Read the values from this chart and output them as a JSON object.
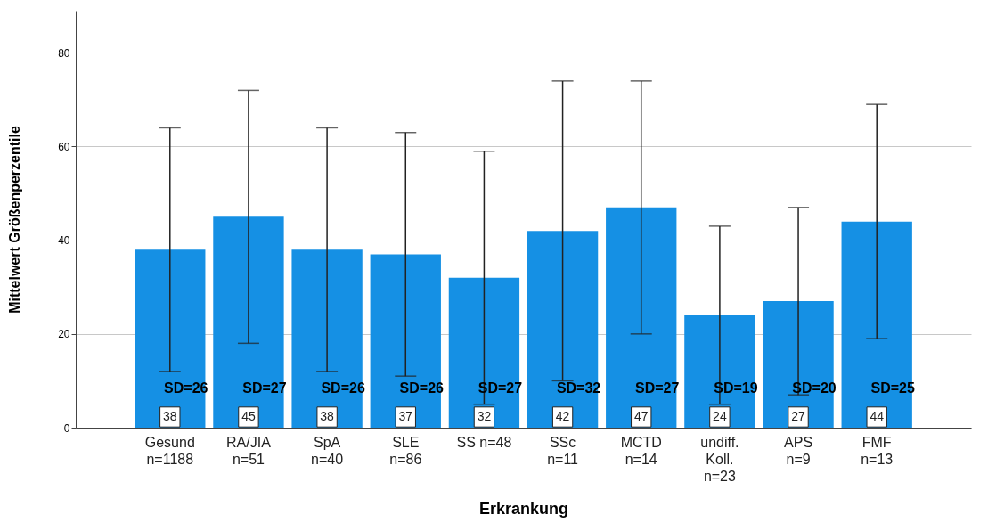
{
  "chart_data": {
    "type": "bar",
    "xlabel": "Erkrankung",
    "ylabel": "Mittelwert Größenperzentile",
    "categories": [
      "Gesund\nn=1188",
      "RA/JIA\nn=51",
      "SpA\nn=40",
      "SLE\nn=86",
      "SS n=48",
      "SSc\nn=11",
      "MCTD\nn=14",
      "undiff.\nKoll.\nn=23",
      "APS\nn=9",
      "FMF\nn=13"
    ],
    "values": [
      38,
      45,
      38,
      37,
      32,
      42,
      47,
      24,
      27,
      44
    ],
    "errors": [
      26,
      27,
      26,
      26,
      27,
      32,
      27,
      19,
      20,
      25
    ],
    "color": "#1590e4",
    "data_labels": true,
    "ylim": [
      0,
      89
    ],
    "yticks": [
      0,
      20,
      40,
      60,
      80
    ],
    "grid": "y",
    "annotations": [
      "SD=26",
      "SD=27",
      "SD=26",
      "SD=26",
      "SD=27",
      "SD=32",
      "SD=27",
      "SD=19",
      "SD=20",
      "SD=25"
    ]
  }
}
